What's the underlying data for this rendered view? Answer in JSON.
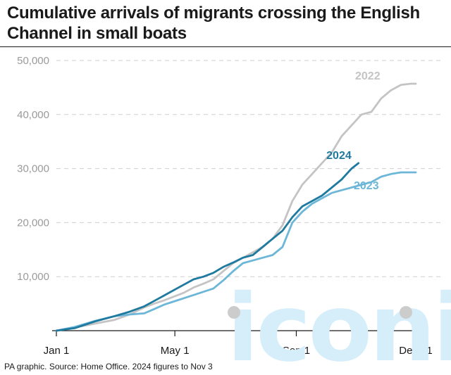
{
  "title": "Cumulative arrivals of migrants crossing the English Channel in small boats",
  "source": "PA graphic. Source: Home Office. 2024 figures to Nov 3",
  "watermark": "iconic",
  "colors": {
    "c2022": "#c4c4c4",
    "c2023": "#6cb6d8",
    "c2024": "#1f7aa0",
    "grid": "#cfcfcf",
    "watermark": "#d6eefa"
  },
  "chart_data": {
    "type": "line",
    "title": "Cumulative arrivals of migrants crossing the English Channel in small boats",
    "xlabel": "",
    "ylabel": "",
    "xlim": [
      1,
      365
    ],
    "ylim": [
      0,
      50000
    ],
    "x_ticks": [
      {
        "label": "Jan 1",
        "day": 1
      },
      {
        "label": "May 1",
        "day": 121
      },
      {
        "label": "Sep 1",
        "day": 244
      },
      {
        "label": "Dec 31",
        "day": 365
      }
    ],
    "y_ticks": [
      {
        "label": "10,000",
        "value": 10000
      },
      {
        "label": "20,000",
        "value": 20000
      },
      {
        "label": "30,000",
        "value": 30000
      },
      {
        "label": "40,000",
        "value": 40000
      },
      {
        "label": "50,000",
        "value": 50000
      }
    ],
    "grid": true,
    "series": [
      {
        "name": "2022",
        "color": "#c4c4c4",
        "x": [
          1,
          20,
          40,
          60,
          75,
          90,
          100,
          110,
          120,
          130,
          140,
          150,
          160,
          170,
          180,
          190,
          200,
          210,
          220,
          230,
          240,
          250,
          260,
          270,
          280,
          290,
          300,
          310,
          320,
          330,
          340,
          350,
          360,
          365
        ],
        "y": [
          0,
          600,
          1300,
          2000,
          3000,
          4300,
          5000,
          5600,
          6300,
          7000,
          8000,
          8700,
          9500,
          11000,
          12500,
          13500,
          14500,
          15500,
          17000,
          19500,
          24000,
          27000,
          29000,
          31000,
          33000,
          36000,
          38000,
          40000,
          40500,
          43000,
          44500,
          45500,
          45700,
          45700
        ]
      },
      {
        "name": "2023",
        "color": "#6cb6d8",
        "x": [
          1,
          20,
          40,
          60,
          75,
          90,
          100,
          110,
          120,
          130,
          140,
          150,
          160,
          170,
          180,
          190,
          200,
          210,
          220,
          230,
          240,
          250,
          260,
          270,
          280,
          290,
          300,
          310,
          320,
          330,
          340,
          350,
          360,
          365
        ],
        "y": [
          0,
          700,
          1800,
          2700,
          3000,
          3200,
          4000,
          4800,
          5400,
          6000,
          6600,
          7200,
          7800,
          9300,
          11000,
          12500,
          13000,
          13500,
          14000,
          15500,
          20000,
          22000,
          23500,
          24500,
          25500,
          26000,
          26500,
          27000,
          27500,
          28500,
          29000,
          29300,
          29300,
          29300
        ]
      },
      {
        "name": "2024",
        "color": "#1f7aa0",
        "x": [
          1,
          20,
          40,
          60,
          75,
          90,
          100,
          110,
          120,
          130,
          140,
          150,
          160,
          170,
          180,
          190,
          200,
          210,
          220,
          230,
          240,
          250,
          260,
          270,
          280,
          290,
          300,
          307
        ],
        "y": [
          0,
          500,
          1700,
          2700,
          3500,
          4500,
          5500,
          6500,
          7500,
          8500,
          9500,
          10000,
          10700,
          11800,
          12600,
          13500,
          14000,
          15500,
          17000,
          18500,
          21000,
          23000,
          24000,
          25000,
          26500,
          28000,
          30000,
          31000
        ]
      }
    ],
    "annotations": [
      {
        "text": "2022",
        "series": "2022"
      },
      {
        "text": "2023",
        "series": "2023"
      },
      {
        "text": "2024",
        "series": "2024"
      }
    ]
  }
}
